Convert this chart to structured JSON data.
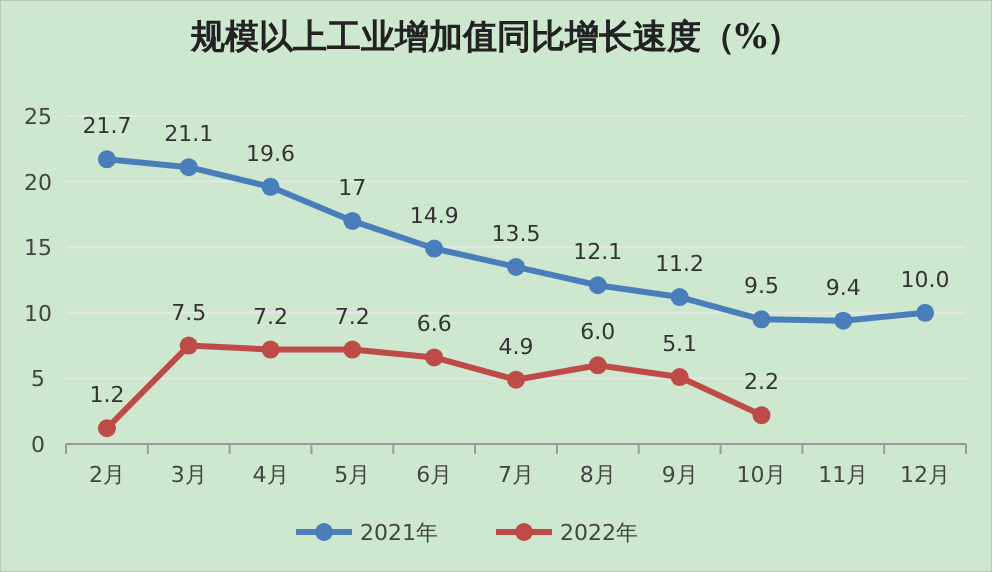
{
  "chart_data": {
    "type": "line",
    "title": "规模以上工业增加值同比增长速度（%）",
    "categories": [
      "2月",
      "3月",
      "4月",
      "5月",
      "6月",
      "7月",
      "8月",
      "9月",
      "10月",
      "11月",
      "12月"
    ],
    "series": [
      {
        "name": "2021年",
        "color": "#4a7ebb",
        "values": [
          21.7,
          21.1,
          19.6,
          17,
          14.9,
          13.5,
          12.1,
          11.2,
          9.5,
          9.4,
          10.0
        ],
        "value_labels": [
          "21.7",
          "21.1",
          "19.6",
          "17",
          "14.9",
          "13.5",
          "12.1",
          "11.2",
          "9.5",
          "9.4",
          "10.0"
        ]
      },
      {
        "name": "2022年",
        "color": "#be4b48",
        "values": [
          1.2,
          7.5,
          7.2,
          7.2,
          6.6,
          4.9,
          6.0,
          5.1,
          2.2,
          null,
          null
        ],
        "value_labels": [
          "1.2",
          "7.5",
          "7.2",
          "7.2",
          "6.6",
          "4.9",
          "6.0",
          "5.1",
          "2.2",
          null,
          null
        ]
      }
    ],
    "ylim": [
      0,
      25
    ],
    "yticks": [
      0,
      5,
      10,
      15,
      20,
      25
    ],
    "grid": "y",
    "legend": "bottom",
    "marker": "circle",
    "line_style": "solid"
  }
}
